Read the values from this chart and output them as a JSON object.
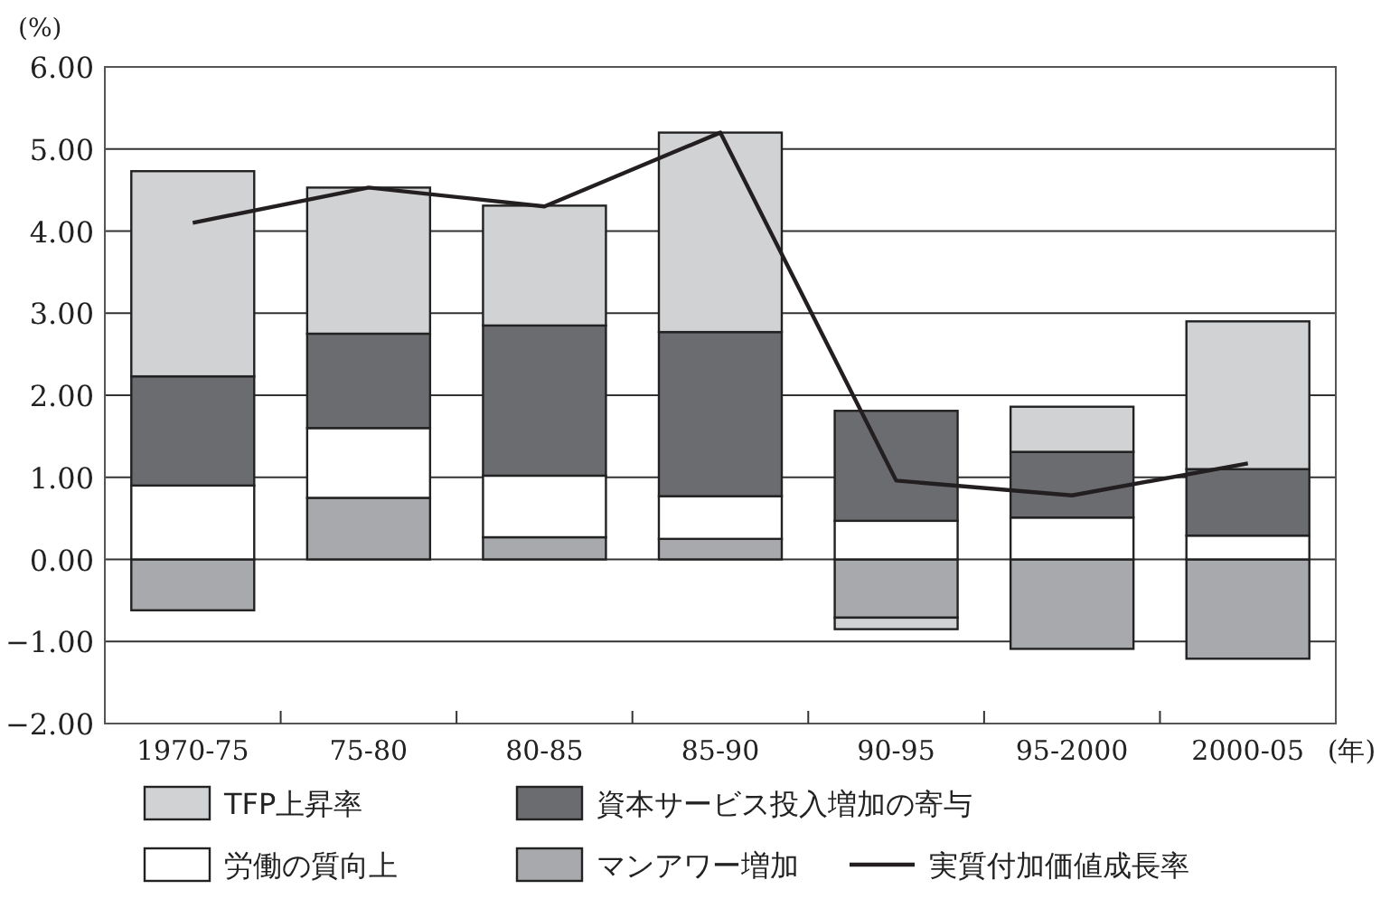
{
  "chart_data": {
    "type": "bar",
    "stacked": true,
    "ylabel": "(%)",
    "xlabel": "(年)",
    "categories": [
      "1970-75",
      "75-80",
      "80-85",
      "85-90",
      "90-95",
      "95-2000",
      "2000-05"
    ],
    "series": [
      {
        "name": "マンアワー増加",
        "color": "#a8a9ad",
        "values": [
          -0.62,
          0.75,
          0.27,
          0.25,
          -0.71,
          -1.09,
          -1.21
        ]
      },
      {
        "name": "労働の質向上",
        "color": "#ffffff",
        "values": [
          0.9,
          0.85,
          0.75,
          0.52,
          0.47,
          0.51,
          0.29
        ]
      },
      {
        "name": "資本サービス投入増加の寄与",
        "color": "#6b6c70",
        "values": [
          1.33,
          1.15,
          1.83,
          2.0,
          1.34,
          0.8,
          0.81
        ]
      },
      {
        "name": "TFP上昇率",
        "color": "#d1d2d4",
        "values": [
          2.5,
          1.78,
          1.46,
          2.43,
          -0.14,
          0.55,
          1.8
        ]
      },
      {
        "name": "実質付加価値成長率",
        "type": "line",
        "color": "#231f20",
        "values": [
          4.1,
          4.53,
          4.3,
          5.2,
          0.96,
          0.78,
          1.17
        ]
      }
    ],
    "ylim": [
      -2,
      6
    ],
    "yticks": [
      {
        "value": -2,
        "label": "−2.00"
      },
      {
        "value": -1,
        "label": "−1.00"
      },
      {
        "value": 0,
        "label": "0.00"
      },
      {
        "value": 1,
        "label": "1.00"
      },
      {
        "value": 2,
        "label": "2.00"
      },
      {
        "value": 3,
        "label": "3.00"
      },
      {
        "value": 4,
        "label": "4.00"
      },
      {
        "value": 5,
        "label": "5.00"
      },
      {
        "value": 6,
        "label": "6.00"
      }
    ],
    "grid": "y",
    "legend": "bottom"
  }
}
